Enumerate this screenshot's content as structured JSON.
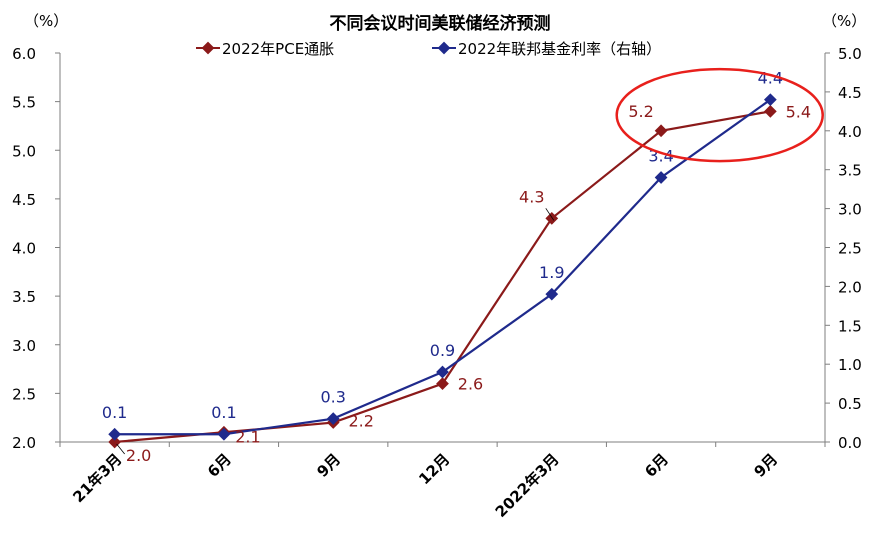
{
  "chart_data": {
    "type": "line",
    "title": "不同会议时间美联储经济预测",
    "left_unit": "（%）",
    "right_unit": "（%）",
    "categories": [
      "21年3月",
      "6月",
      "9月",
      "12月",
      "2022年3月",
      "6月",
      "9月"
    ],
    "left_axis": {
      "ylim": [
        2.0,
        6.0
      ],
      "ticks": [
        "2.0",
        "2.5",
        "3.0",
        "3.5",
        "4.0",
        "4.5",
        "5.0",
        "5.5",
        "6.0"
      ]
    },
    "right_axis": {
      "ylim": [
        0.0,
        5.0
      ],
      "ticks": [
        "0.0",
        "0.5",
        "1.0",
        "1.5",
        "2.0",
        "2.5",
        "3.0",
        "3.5",
        "4.0",
        "4.5",
        "5.0"
      ]
    },
    "series": [
      {
        "name": "2022年PCE通胀",
        "axis": "left",
        "color": "#8b1a1a",
        "values": [
          2.0,
          2.1,
          2.2,
          2.6,
          4.3,
          5.2,
          5.4
        ],
        "labels": [
          "2.0",
          "2.1",
          "2.2",
          "2.6",
          "4.3",
          "5.2",
          "5.4"
        ]
      },
      {
        "name": "2022年联邦基金利率（右轴）",
        "axis": "right",
        "color": "#1f2a8c",
        "values": [
          0.1,
          0.1,
          0.3,
          0.9,
          1.9,
          3.4,
          4.4
        ],
        "labels": [
          "0.1",
          "0.1",
          "0.3",
          "0.9",
          "1.9",
          "3.4",
          "4.4"
        ]
      }
    ],
    "highlight": {
      "shape": "ellipse",
      "color": "#e8201c",
      "around": [
        "6月",
        "9月"
      ]
    },
    "grid": false,
    "legend_position": "top"
  }
}
